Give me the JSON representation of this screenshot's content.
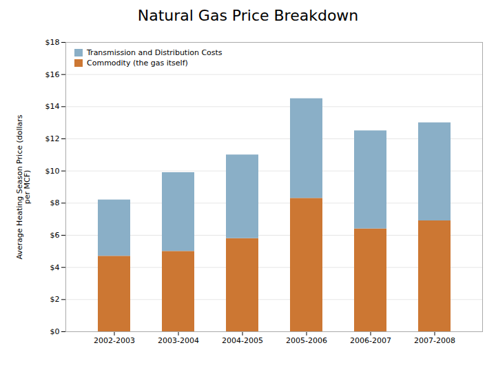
{
  "chart_data": {
    "type": "bar",
    "stacked": true,
    "title": "Natural Gas Price Breakdown",
    "ylabel": "Average Heating Season Price (dollars\nper MCF)",
    "categories": [
      "2002-2003",
      "2003-2004",
      "2004-2005",
      "2005-2006",
      "2006-2007",
      "2007-2008"
    ],
    "series": [
      {
        "name": "Commodity (the gas itself)",
        "color": "#cc7733",
        "values": [
          4.7,
          5.0,
          5.8,
          8.3,
          6.4,
          6.9
        ]
      },
      {
        "name": "Transmission and Distribution Costs",
        "color": "#8aafc7",
        "values": [
          3.5,
          4.9,
          5.2,
          6.2,
          6.1,
          6.1
        ]
      }
    ],
    "ylim": [
      0,
      18
    ],
    "yticks": [
      {
        "value": 0,
        "label": "$0"
      },
      {
        "value": 2,
        "label": "$2"
      },
      {
        "value": 4,
        "label": "$4"
      },
      {
        "value": 6,
        "label": "$6"
      },
      {
        "value": 8,
        "label": "$8"
      },
      {
        "value": 10,
        "label": "$10"
      },
      {
        "value": 12,
        "label": "$12"
      },
      {
        "value": 14,
        "label": "$14"
      },
      {
        "value": 16,
        "label": "$16"
      },
      {
        "value": 18,
        "label": "$18"
      }
    ],
    "grid": true,
    "legend": "upper left"
  }
}
